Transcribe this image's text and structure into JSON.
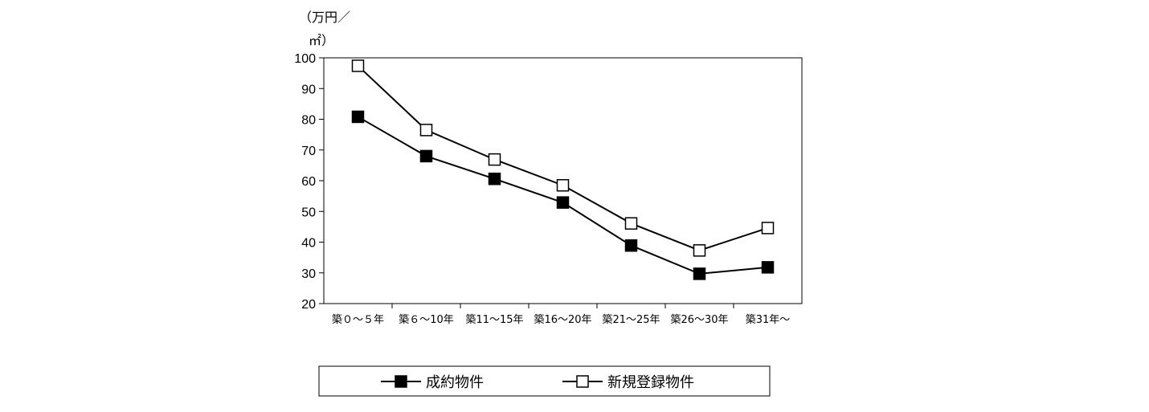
{
  "chart_data": {
    "type": "line",
    "ylabel_line1": "（万円／",
    "ylabel_line2": "㎡）",
    "ylim": [
      20,
      100
    ],
    "yticks": [
      20,
      30,
      40,
      50,
      60,
      70,
      80,
      90,
      100
    ],
    "categories": [
      "築０～５年",
      "築６～10年",
      "築11～15年",
      "築16～20年",
      "築21～25年",
      "築26～30年",
      "築31年～"
    ],
    "grid": false,
    "legend_position": "bottom",
    "series": [
      {
        "name": "成約物件",
        "marker": "filled-square",
        "values": [
          80.8,
          68.0,
          60.6,
          52.9,
          38.9,
          29.7,
          31.8
        ]
      },
      {
        "name": "新規登録物件",
        "marker": "open-square",
        "values": [
          97.4,
          76.5,
          66.9,
          58.5,
          46.1,
          37.3,
          44.6
        ]
      }
    ]
  }
}
